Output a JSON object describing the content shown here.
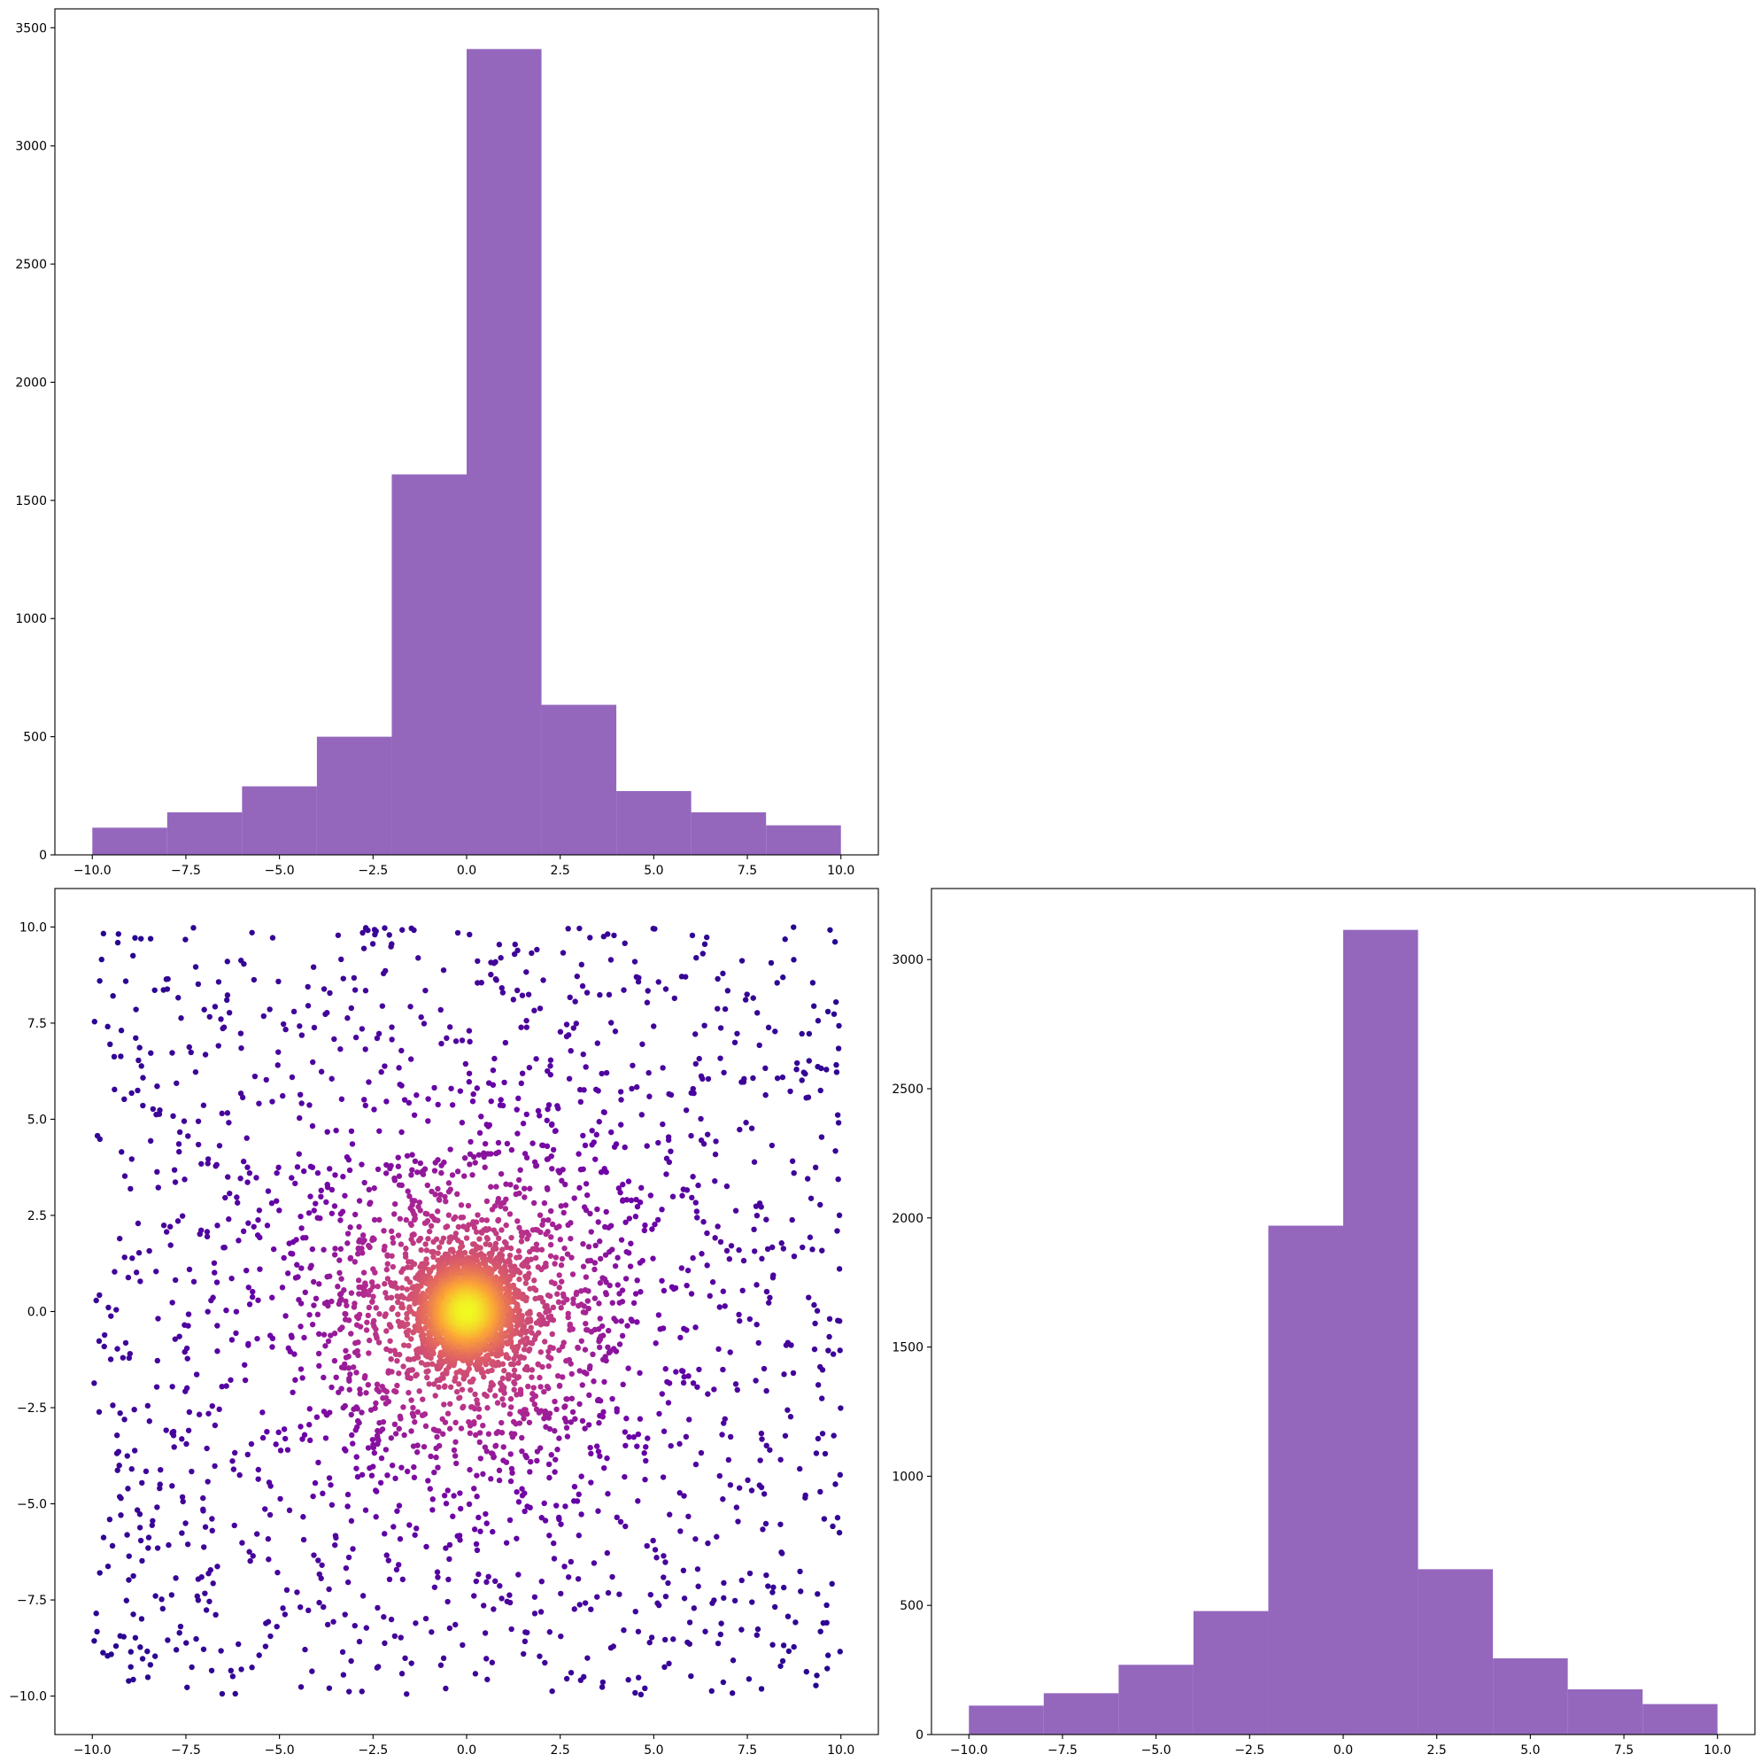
{
  "chart_data": [
    {
      "type": "bar",
      "panel": "top-left",
      "bin_edges": [
        -10,
        -8,
        -6,
        -4,
        -2,
        0,
        2,
        4,
        6,
        8,
        10
      ],
      "values": [
        115,
        180,
        290,
        500,
        1610,
        3410,
        635,
        270,
        180,
        125
      ],
      "xlim": [
        -11,
        11
      ],
      "ylim": [
        0,
        3580
      ],
      "xticks": [
        "−10.0",
        "−7.5",
        "−5.0",
        "−2.5",
        "0.0",
        "2.5",
        "5.0",
        "7.5",
        "10.0"
      ],
      "yticks": [
        "0",
        "500",
        "1000",
        "1500",
        "2000",
        "2500",
        "3000",
        "3500"
      ],
      "color": "#9467bd"
    },
    {
      "type": "scatter",
      "panel": "bottom-left",
      "xlim": [
        -11,
        11
      ],
      "ylim": [
        -11,
        11
      ],
      "xticks": [
        "−10.0",
        "−7.5",
        "−5.0",
        "−2.5",
        "0.0",
        "2.5",
        "5.0",
        "7.5",
        "10.0"
      ],
      "yticks": [
        "−10.0",
        "−7.5",
        "−5.0",
        "−2.5",
        "0.0",
        "2.5",
        "5.0",
        "7.5",
        "10.0"
      ],
      "colormap": [
        "#0d0887",
        "#6a00a8",
        "#b12a90",
        "#e16462",
        "#fca636",
        "#f0f921"
      ],
      "color_encoding": "point density"
    },
    {
      "type": "bar",
      "panel": "bottom-right",
      "bin_edges": [
        -10,
        -8,
        -6,
        -4,
        -2,
        0,
        2,
        4,
        6,
        8,
        10
      ],
      "values": [
        112,
        160,
        270,
        478,
        1970,
        3115,
        640,
        295,
        175,
        118
      ],
      "xlim": [
        -11,
        11
      ],
      "ylim": [
        0,
        3275
      ],
      "xticks": [
        "−10.0",
        "−7.5",
        "−5.0",
        "−2.5",
        "0.0",
        "2.5",
        "5.0",
        "7.5",
        "10.0"
      ],
      "yticks": [
        "0",
        "500",
        "1000",
        "1500",
        "2000",
        "2500",
        "3000"
      ],
      "color": "#9467bd"
    }
  ]
}
